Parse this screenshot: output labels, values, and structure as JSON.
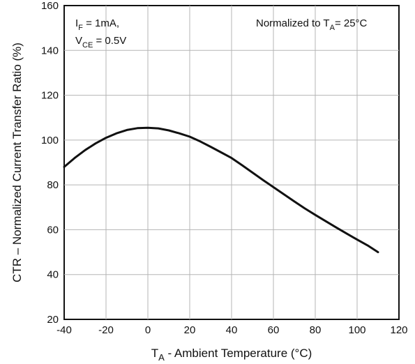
{
  "chart_data": {
    "type": "line",
    "xlabel": {
      "main": "T",
      "sub": "A",
      "rest": " - Ambient Temperature (°C)"
    },
    "ylabel": "CTR – Normalized Current Transfer Ratio (%)",
    "xlim": [
      -40,
      120
    ],
    "ylim": [
      20,
      160
    ],
    "xticks": [
      -40,
      -20,
      0,
      20,
      40,
      60,
      80,
      100,
      120
    ],
    "yticks": [
      20,
      40,
      60,
      80,
      100,
      120,
      140,
      160
    ],
    "grid": true,
    "annotations": {
      "cond1": {
        "main": "I",
        "sub": "F",
        "rest": " = 1mA,"
      },
      "cond2": {
        "main": "V",
        "sub": "CE",
        "rest": " = 0.5V"
      },
      "norm": {
        "pre": "Normalized to T",
        "sub": "A",
        "rest": "= 25°C"
      }
    },
    "series": [
      {
        "x": [
          -40,
          -35,
          -30,
          -25,
          -20,
          -15,
          -10,
          -5,
          0,
          5,
          10,
          15,
          20,
          25,
          30,
          35,
          40,
          45,
          50,
          55,
          60,
          65,
          70,
          75,
          80,
          85,
          90,
          95,
          100,
          105,
          110
        ],
        "y": [
          88,
          92,
          95.5,
          98.5,
          101,
          103,
          104.5,
          105.3,
          105.5,
          105.2,
          104.3,
          103,
          101.5,
          99.4,
          97,
          94.5,
          92,
          88.8,
          85.5,
          82.2,
          79,
          75.8,
          72.6,
          69.5,
          66.6,
          63.8,
          61,
          58.3,
          55.6,
          53,
          50
        ]
      }
    ]
  }
}
